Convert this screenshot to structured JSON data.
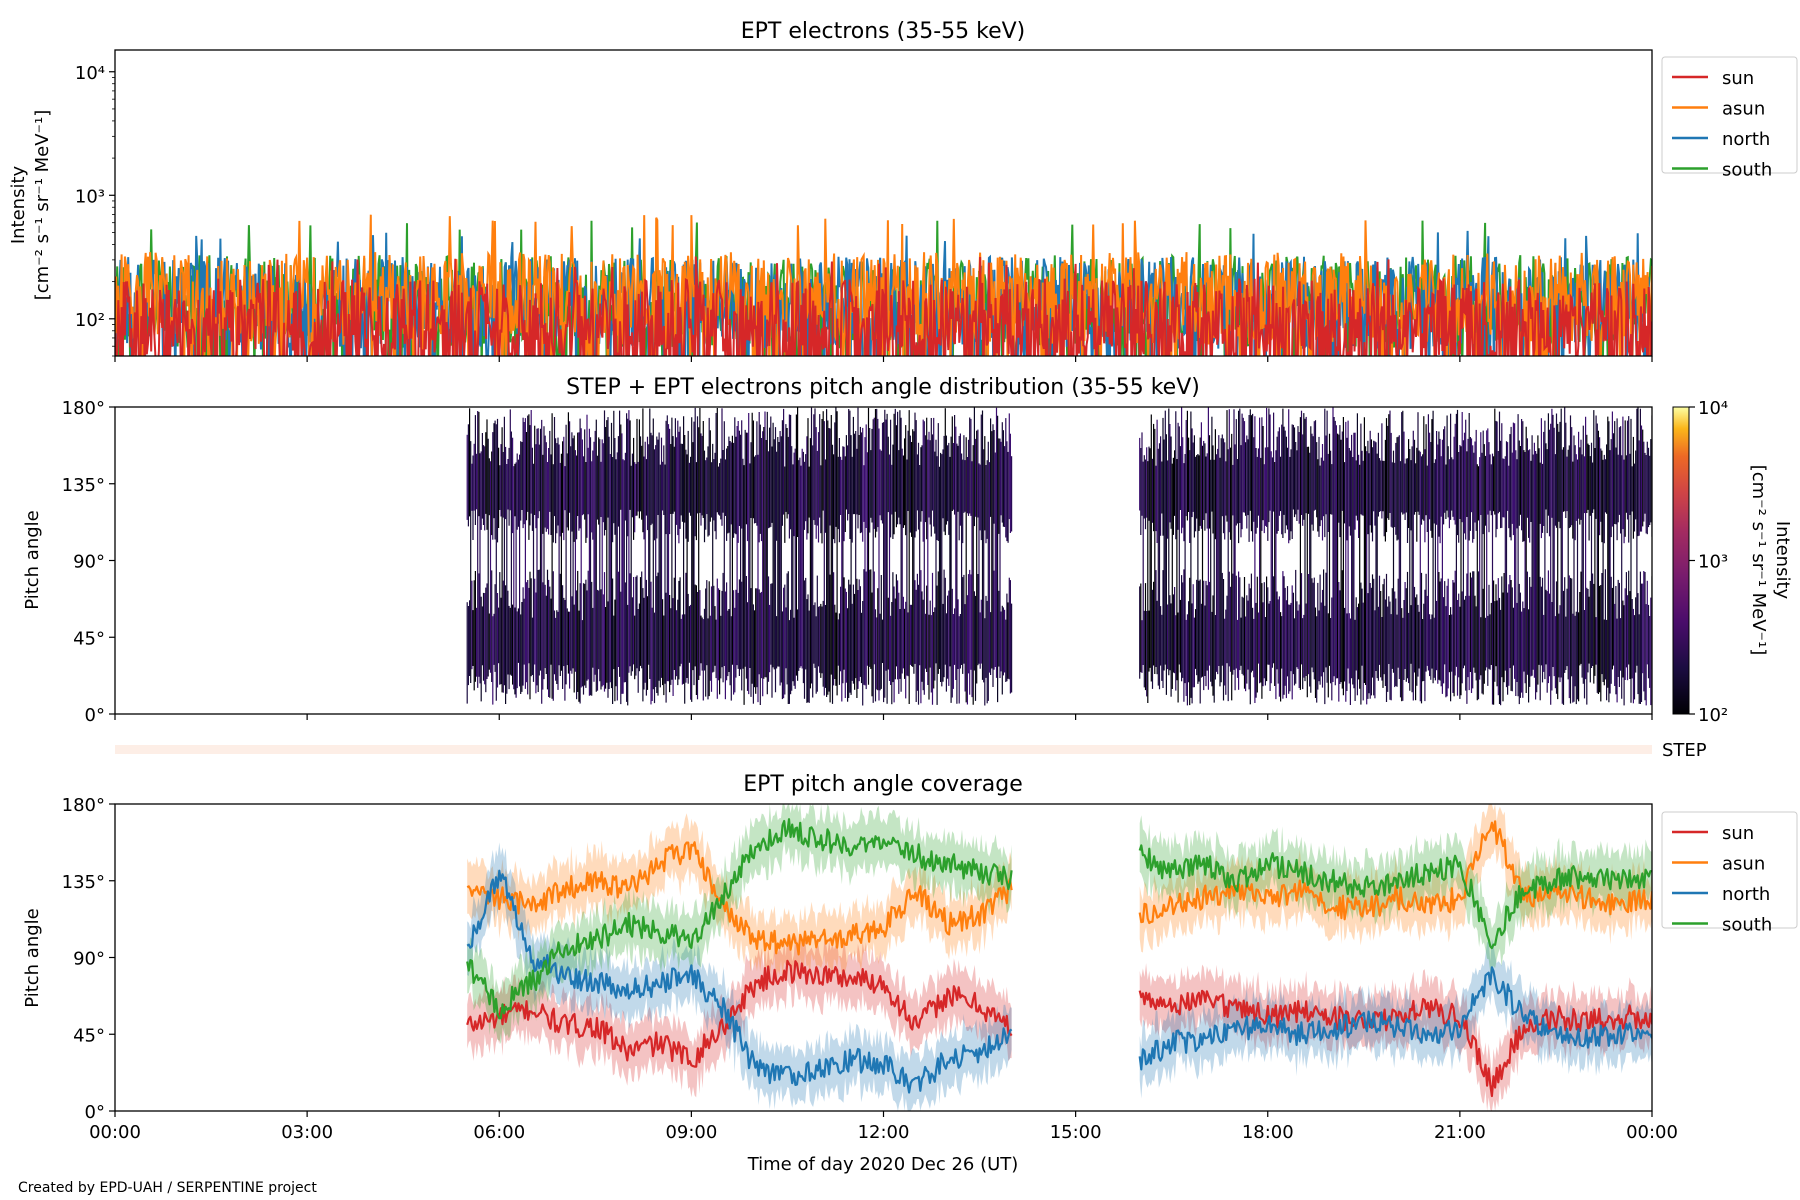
{
  "footer": {
    "credit": "Created by EPD-UAH / SERPENTINE project"
  },
  "x_axis": {
    "label": "Time of day 2020 Dec 26 (UT)",
    "range_hours": [
      0,
      24
    ],
    "ticks": [
      {
        "hour": 0,
        "label": "00:00"
      },
      {
        "hour": 3,
        "label": "03:00"
      },
      {
        "hour": 6,
        "label": "06:00"
      },
      {
        "hour": 9,
        "label": "09:00"
      },
      {
        "hour": 12,
        "label": "12:00"
      },
      {
        "hour": 15,
        "label": "15:00"
      },
      {
        "hour": 18,
        "label": "18:00"
      },
      {
        "hour": 21,
        "label": "21:00"
      },
      {
        "hour": 24,
        "label": "00:00"
      }
    ]
  },
  "colors": {
    "sun": "#d62728",
    "asun": "#ff7f0e",
    "north": "#1f77b4",
    "south": "#2ca02c"
  },
  "chart_data": [
    {
      "type": "line",
      "title": "EPT electrons (35-55 keV)",
      "ylabel_line1": "Intensity",
      "ylabel_line2": "[cm⁻² s⁻¹ sr⁻¹ MeV⁻¹]",
      "yscale": "log",
      "ylim": [
        50,
        15000
      ],
      "yticks": [
        {
          "value": 100,
          "label": "10²"
        },
        {
          "value": 1000,
          "label": "10³"
        },
        {
          "value": 10000,
          "label": "10⁴"
        }
      ],
      "legend_position": "outside-right",
      "series": [
        {
          "name": "south",
          "color": "#2ca02c",
          "typical": 170,
          "peak": 650
        },
        {
          "name": "north",
          "color": "#1f77b4",
          "typical": 165,
          "peak": 520
        },
        {
          "name": "asun",
          "color": "#ff7f0e",
          "typical": 180,
          "peak": 700
        },
        {
          "name": "sun",
          "color": "#d62728",
          "typical": 110,
          "peak": 320
        }
      ],
      "legend_order": [
        "sun",
        "asun",
        "north",
        "south"
      ]
    },
    {
      "type": "heatmap",
      "title": "STEP + EPT electrons pitch angle distribution (35-55 keV)",
      "ylabel": "Pitch angle",
      "ylim": [
        0,
        180
      ],
      "yticks": [
        {
          "value": 0,
          "label": "0°"
        },
        {
          "value": 45,
          "label": "45°"
        },
        {
          "value": 90,
          "label": "90°"
        },
        {
          "value": 135,
          "label": "135°"
        },
        {
          "value": 180,
          "label": "180°"
        }
      ],
      "coverage_intervals_hours": [
        [
          5.5,
          14.0
        ],
        [
          16.0,
          24.0
        ]
      ],
      "colorbar": {
        "label_line1": "Intensity",
        "label_line2": "[cm⁻² s⁻¹ sr⁻¹ MeV⁻¹]",
        "scale": "log",
        "range": [
          100,
          10000
        ],
        "ticks": [
          {
            "value": 100,
            "label": "10²"
          },
          {
            "value": 1000,
            "label": "10³"
          },
          {
            "value": 10000,
            "label": "10⁴"
          }
        ]
      }
    },
    {
      "type": "bar",
      "label": "STEP",
      "color": "#fdeee6"
    },
    {
      "type": "area",
      "title": "EPT pitch angle coverage",
      "ylabel": "Pitch angle",
      "ylim": [
        0,
        180
      ],
      "yticks": [
        {
          "value": 0,
          "label": "0°"
        },
        {
          "value": 45,
          "label": "45°"
        },
        {
          "value": 90,
          "label": "90°"
        },
        {
          "value": 135,
          "label": "135°"
        },
        {
          "value": 180,
          "label": "180°"
        }
      ],
      "band_halfwidth_deg": 15,
      "legend_position": "outside-right",
      "legend_order": [
        "sun",
        "asun",
        "north",
        "south"
      ],
      "series": [
        {
          "name": "sun",
          "color": "#d62728",
          "segments": [
            {
              "x": [
                5.5,
                6.0,
                6.5,
                7.0,
                7.5,
                8.0,
                8.5,
                9.0,
                9.5,
                10.0,
                10.5,
                11.0,
                11.5,
                12.0,
                12.5,
                13.0,
                13.5,
                14.0
              ],
              "y": [
                50,
                55,
                60,
                50,
                50,
                35,
                40,
                30,
                50,
                75,
                82,
                80,
                78,
                75,
                50,
                68,
                62,
                48
              ]
            },
            {
              "x": [
                16.0,
                16.5,
                17.0,
                17.5,
                18.0,
                18.5,
                19.0,
                19.5,
                20.0,
                20.5,
                21.0,
                21.5,
                22.0,
                22.5,
                23.0,
                23.5,
                24.0
              ],
              "y": [
                70,
                62,
                65,
                60,
                55,
                58,
                55,
                52,
                55,
                60,
                55,
                15,
                50,
                55,
                52,
                55,
                55
              ]
            }
          ]
        },
        {
          "name": "asun",
          "color": "#ff7f0e",
          "segments": [
            {
              "x": [
                5.5,
                6.0,
                6.5,
                7.0,
                7.5,
                8.0,
                8.5,
                9.0,
                9.5,
                10.0,
                10.5,
                11.0,
                11.5,
                12.0,
                12.5,
                13.0,
                13.5,
                14.0
              ],
              "y": [
                130,
                125,
                120,
                130,
                135,
                130,
                145,
                155,
                120,
                100,
                98,
                100,
                102,
                108,
                130,
                110,
                115,
                130
              ]
            },
            {
              "x": [
                16.0,
                16.5,
                17.0,
                17.5,
                18.0,
                18.5,
                19.0,
                19.5,
                20.0,
                20.5,
                21.0,
                21.5,
                22.0,
                22.5,
                23.0,
                23.5,
                24.0
              ],
              "y": [
                115,
                120,
                125,
                130,
                125,
                130,
                120,
                118,
                125,
                120,
                125,
                170,
                125,
                130,
                125,
                120,
                125
              ]
            }
          ]
        },
        {
          "name": "north",
          "color": "#1f77b4",
          "segments": [
            {
              "x": [
                5.5,
                6.0,
                6.5,
                7.0,
                7.5,
                8.0,
                8.5,
                9.0,
                9.5,
                10.0,
                10.5,
                11.0,
                11.5,
                12.0,
                12.5,
                13.0,
                13.5,
                14.0
              ],
              "y": [
                95,
                140,
                90,
                80,
                75,
                70,
                75,
                80,
                60,
                25,
                20,
                25,
                30,
                28,
                15,
                30,
                35,
                45
              ]
            },
            {
              "x": [
                16.0,
                16.5,
                17.0,
                17.5,
                18.0,
                18.5,
                19.0,
                19.5,
                20.0,
                20.5,
                21.0,
                21.5,
                22.0,
                22.5,
                23.0,
                23.5,
                24.0
              ],
              "y": [
                30,
                40,
                42,
                48,
                50,
                45,
                48,
                52,
                50,
                45,
                50,
                80,
                55,
                48,
                42,
                45,
                45
              ]
            }
          ]
        },
        {
          "name": "south",
          "color": "#2ca02c",
          "segments": [
            {
              "x": [
                5.5,
                6.0,
                6.5,
                7.0,
                7.5,
                8.0,
                8.5,
                9.0,
                9.5,
                10.0,
                10.5,
                11.0,
                11.5,
                12.0,
                12.5,
                13.0,
                13.5,
                14.0
              ],
              "y": [
                85,
                60,
                75,
                95,
                100,
                110,
                105,
                100,
                125,
                155,
                165,
                160,
                155,
                155,
                150,
                145,
                140,
                135
              ]
            },
            {
              "x": [
                16.0,
                16.5,
                17.0,
                17.5,
                18.0,
                18.5,
                19.0,
                19.5,
                20.0,
                20.5,
                21.0,
                21.5,
                22.0,
                22.5,
                23.0,
                23.5,
                24.0
              ],
              "y": [
                150,
                140,
                145,
                135,
                145,
                140,
                135,
                130,
                135,
                140,
                145,
                100,
                130,
                135,
                138,
                135,
                135
              ]
            }
          ]
        }
      ]
    }
  ]
}
